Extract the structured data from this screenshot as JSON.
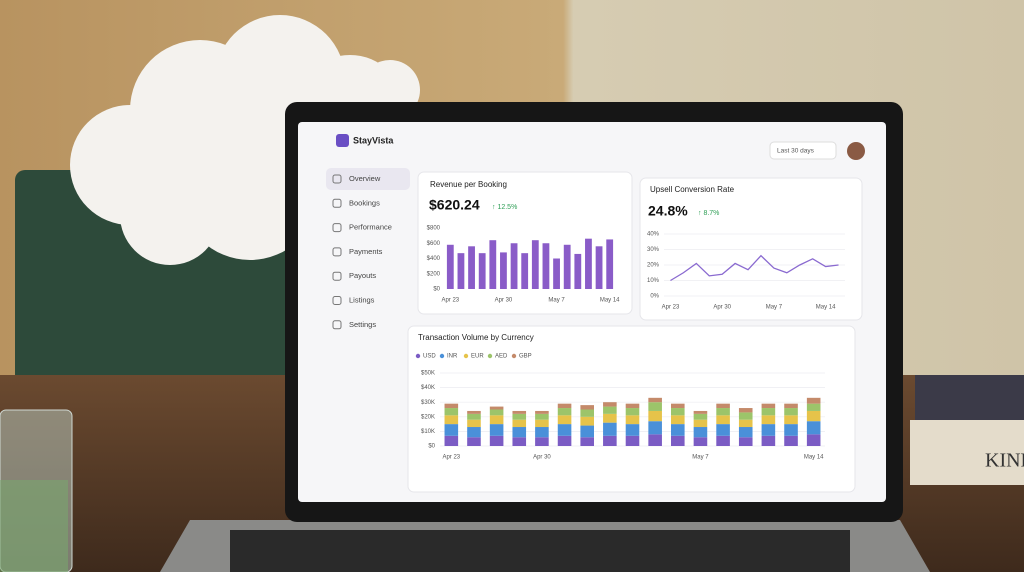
{
  "app": {
    "brand": "StayVista",
    "date_range": "Last 30 days",
    "nav": [
      "Overview",
      "Bookings",
      "Performance",
      "Payments",
      "Payouts",
      "Listings",
      "Settings"
    ]
  },
  "book_text": "KINF",
  "chart_data": [
    {
      "type": "bar",
      "title": "Revenue per Booking",
      "kpi": "$620.24",
      "kpi_change": "↑ 12.5%",
      "color": "#8a5cc8",
      "grid": false,
      "categories": [
        "Apr 23",
        null,
        null,
        null,
        null,
        "Apr 30",
        null,
        null,
        null,
        null,
        "May 7",
        null,
        null,
        null,
        null,
        "May 14"
      ],
      "values": [
        580,
        470,
        560,
        470,
        640,
        480,
        600,
        470,
        640,
        600,
        400,
        580,
        460,
        660,
        560,
        650
      ],
      "ylim": [
        0,
        800
      ],
      "yticks": [
        {
          "value": 0,
          "label": "$0"
        },
        {
          "value": 200,
          "label": "$200"
        },
        {
          "value": 400,
          "label": "$400"
        },
        {
          "value": 600,
          "label": "$600"
        },
        {
          "value": 800,
          "label": "$800"
        }
      ]
    },
    {
      "type": "line",
      "title": "Upsell Conversion Rate",
      "kpi": "24.8%",
      "kpi_change": "↑ 8.7%",
      "color": "#8a6ad0",
      "grid": true,
      "categories": [
        "Apr 23",
        null,
        null,
        null,
        "Apr 30",
        null,
        null,
        null,
        "May 7",
        null,
        null,
        null,
        "May 14",
        null
      ],
      "values": [
        10,
        15,
        21,
        13,
        14,
        21,
        17,
        26,
        18,
        15,
        20,
        24,
        19,
        20
      ],
      "ylim": [
        0,
        40
      ],
      "yticks": [
        {
          "value": 0,
          "label": "0%"
        },
        {
          "value": 10,
          "label": "10%"
        },
        {
          "value": 20,
          "label": "20%"
        },
        {
          "value": 30,
          "label": "30%"
        },
        {
          "value": 40,
          "label": "40%"
        }
      ]
    },
    {
      "type": "stacked_bar",
      "title": "Transaction Volume by Currency",
      "grid": true,
      "categories": [
        "Apr 23",
        null,
        null,
        null,
        "Apr 30",
        null,
        null,
        null,
        null,
        null,
        null,
        "May 7",
        null,
        null,
        null,
        null,
        "May 14"
      ],
      "ylim": [
        0,
        50000
      ],
      "yticks": [
        {
          "value": 0,
          "label": "$0"
        },
        {
          "value": 10000,
          "label": "$10K"
        },
        {
          "value": 20000,
          "label": "$20K"
        },
        {
          "value": 30000,
          "label": "$30K"
        },
        {
          "value": 40000,
          "label": "$40K"
        },
        {
          "value": 50000,
          "label": "$50K"
        }
      ],
      "series": [
        {
          "name": "USD",
          "color": "#7b5cc4",
          "values": [
            7000,
            6000,
            7000,
            6000,
            6000,
            7000,
            6000,
            7000,
            7000,
            8000,
            7000,
            6000,
            7000,
            6000,
            7000,
            7000,
            8000
          ]
        },
        {
          "name": "INR",
          "color": "#4a90d9",
          "values": [
            8000,
            7000,
            8000,
            7000,
            7000,
            8000,
            8000,
            9000,
            8000,
            9000,
            8000,
            7000,
            8000,
            7000,
            8000,
            8000,
            9000
          ]
        },
        {
          "name": "EUR",
          "color": "#e6c34a",
          "values": [
            6000,
            5000,
            6000,
            5000,
            5000,
            6000,
            6000,
            6000,
            6000,
            7000,
            6000,
            5000,
            6000,
            5000,
            6000,
            6000,
            7000
          ]
        },
        {
          "name": "AED",
          "color": "#9cc46a",
          "values": [
            5000,
            4000,
            4000,
            4000,
            4000,
            5000,
            5000,
            5000,
            5000,
            6000,
            5000,
            4000,
            5000,
            5000,
            5000,
            5000,
            5000
          ]
        },
        {
          "name": "GBP",
          "color": "#c48a6a",
          "values": [
            3000,
            2000,
            2000,
            2000,
            2000,
            3000,
            3000,
            3000,
            3000,
            3000,
            3000,
            2000,
            3000,
            3000,
            3000,
            3000,
            4000
          ]
        }
      ]
    }
  ]
}
